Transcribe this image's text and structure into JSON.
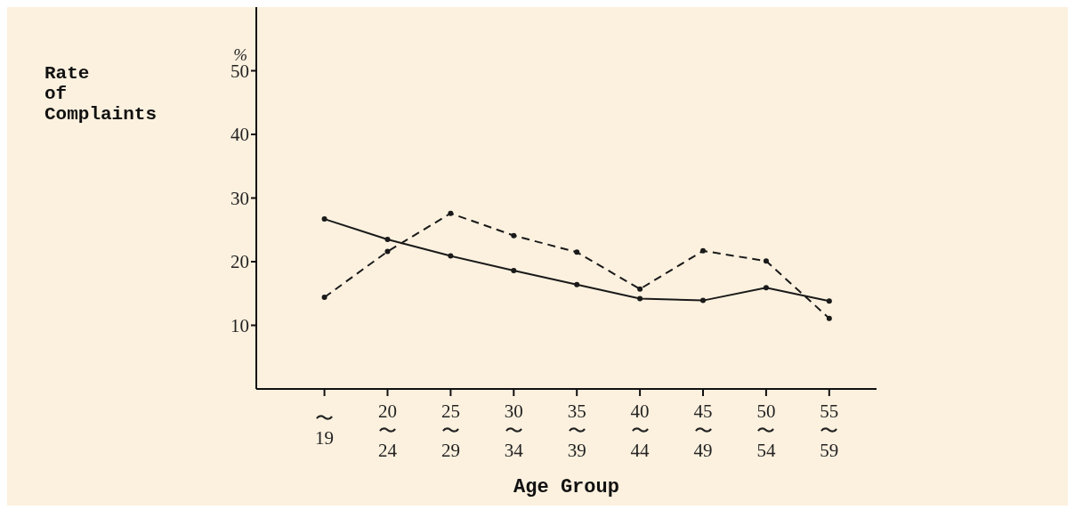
{
  "chart_data": {
    "type": "line",
    "ylabel": "Rate\nof\nComplaints",
    "xlabel": "Age Group",
    "annotations": [
      "%"
    ],
    "categories": [
      "\n〜\n19",
      "20\n〜\n24",
      "25\n〜\n29",
      "30\n〜\n34",
      "35\n〜\n39",
      "40\n〜\n44",
      "45\n〜\n49",
      "50\n〜\n54",
      "55\n〜\n59"
    ],
    "series": [
      {
        "color": "#1a1a1a",
        "line_style": "solid",
        "values": [
          26.7,
          23.5,
          20.9,
          18.6,
          16.4,
          14.2,
          13.9,
          15.9,
          13.8
        ]
      },
      {
        "color": "#1a1a1a",
        "line_style": "dashed",
        "values": [
          14.4,
          21.6,
          27.6,
          24.1,
          21.5,
          15.7,
          21.7,
          20.1,
          11.1
        ]
      }
    ],
    "ylim": [
      0,
      60
    ],
    "yticks": [
      10,
      20,
      30,
      40,
      50
    ],
    "grid": false,
    "legend": false,
    "marker": "circle"
  }
}
